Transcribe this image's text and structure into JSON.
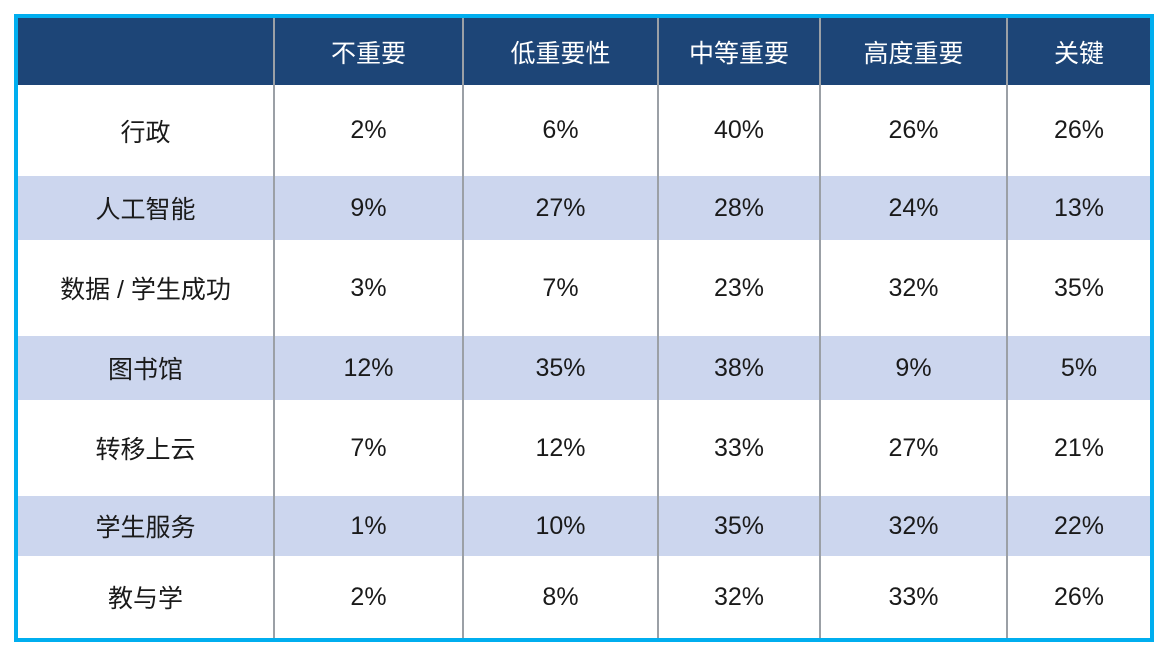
{
  "colors": {
    "accent_border": "#00AEEF",
    "header_bg": "#1D4577",
    "header_text": "#FFFFFF",
    "stripe_bg": "#CCD6EE",
    "row_bg": "#FFFFFF",
    "divider": "#9BA0A6",
    "cell_text": "#1A1A1A"
  },
  "table": {
    "columns": [
      "",
      "不重要",
      "低重要性",
      "中等重要",
      "高度重要",
      "关键"
    ],
    "rows": [
      {
        "label": "行政",
        "values": [
          "2%",
          "6%",
          "40%",
          "26%",
          "26%"
        ]
      },
      {
        "label": "人工智能",
        "values": [
          "9%",
          "27%",
          "28%",
          "24%",
          "13%"
        ]
      },
      {
        "label": "数据 / 学生成功",
        "values": [
          "3%",
          "7%",
          "23%",
          "32%",
          "35%"
        ]
      },
      {
        "label": "图书馆",
        "values": [
          "12%",
          "35%",
          "38%",
          "9%",
          "5%"
        ]
      },
      {
        "label": "转移上云",
        "values": [
          "7%",
          "12%",
          "33%",
          "27%",
          "21%"
        ]
      },
      {
        "label": "学生服务",
        "values": [
          "1%",
          "10%",
          "35%",
          "32%",
          "22%"
        ]
      },
      {
        "label": "教与学",
        "values": [
          "2%",
          "8%",
          "32%",
          "33%",
          "26%"
        ]
      }
    ]
  },
  "chart_data": {
    "type": "table",
    "title": "",
    "categories": [
      "不重要",
      "低重要性",
      "中等重要",
      "高度重要",
      "关键"
    ],
    "values_unit": "%",
    "series": [
      {
        "name": "行政",
        "values": [
          2,
          6,
          40,
          26,
          26
        ]
      },
      {
        "name": "人工智能",
        "values": [
          9,
          27,
          28,
          24,
          13
        ]
      },
      {
        "name": "数据 / 学生成功",
        "values": [
          3,
          7,
          23,
          32,
          35
        ]
      },
      {
        "name": "图书馆",
        "values": [
          12,
          35,
          38,
          9,
          5
        ]
      },
      {
        "name": "转移上云",
        "values": [
          7,
          12,
          33,
          27,
          21
        ]
      },
      {
        "name": "学生服务",
        "values": [
          1,
          10,
          35,
          32,
          22
        ]
      },
      {
        "name": "教与学",
        "values": [
          2,
          8,
          32,
          33,
          26
        ]
      }
    ],
    "layout_hints": {
      "striped_rows": true,
      "header_background": "#1D4577",
      "outer_border": "#00AEEF",
      "grid": "vertical-only"
    }
  }
}
